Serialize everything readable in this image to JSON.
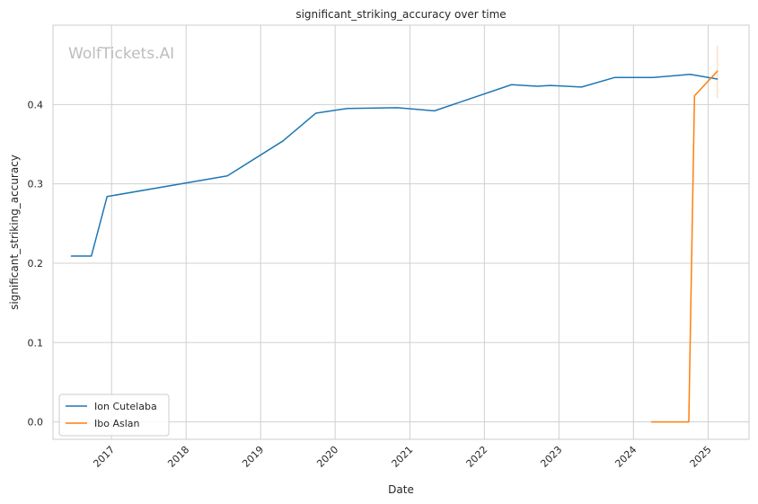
{
  "chart_data": {
    "type": "line",
    "title": "significant_striking_accuracy over time",
    "xlabel": "Date",
    "ylabel": "significant_striking_accuracy",
    "watermark": "WolfTickets.AI",
    "xlim": [
      "2016-03-20",
      "2025-07-20"
    ],
    "ylim": [
      -0.022,
      0.5
    ],
    "x_ticks": [
      "2017-01-01",
      "2018-01-01",
      "2019-01-01",
      "2020-01-01",
      "2021-01-01",
      "2022-01-01",
      "2023-01-01",
      "2024-01-01",
      "2025-01-01"
    ],
    "x_tick_labels": [
      "2017",
      "2018",
      "2019",
      "2020",
      "2021",
      "2022",
      "2023",
      "2024",
      "2025"
    ],
    "y_ticks": [
      0.0,
      0.1,
      0.2,
      0.3,
      0.4
    ],
    "y_tick_labels": [
      "0.0",
      "0.1",
      "0.2",
      "0.3",
      "0.4"
    ],
    "grid": true,
    "legend_position": "lower-left",
    "series": [
      {
        "name": "Ion Cutelaba",
        "color": "#1f77b4",
        "x": [
          "2016-06-18",
          "2016-09-24",
          "2016-12-10",
          "2018-07-22",
          "2019-04-20",
          "2019-09-28",
          "2020-02-29",
          "2020-10-31",
          "2021-05-01",
          "2022-05-14",
          "2022-09-17",
          "2022-11-19",
          "2023-04-22",
          "2023-09-30",
          "2024-04-06",
          "2024-10-05",
          "2025-02-15"
        ],
        "values": [
          0.209,
          0.209,
          0.284,
          0.31,
          0.354,
          0.389,
          0.395,
          0.396,
          0.392,
          0.425,
          0.423,
          0.424,
          0.422,
          0.434,
          0.434,
          0.438,
          0.432
        ]
      },
      {
        "name": "Ibo Aslan",
        "color": "#ff7f0e",
        "x": [
          "2024-03-30",
          "2024-09-28",
          "2024-10-26",
          "2025-02-15"
        ],
        "values": [
          0.0,
          0.0,
          0.411,
          0.442
        ]
      }
    ],
    "error_bar": {
      "series": "Ibo Aslan",
      "x": "2025-02-15",
      "low": 0.408,
      "high": 0.474
    }
  }
}
